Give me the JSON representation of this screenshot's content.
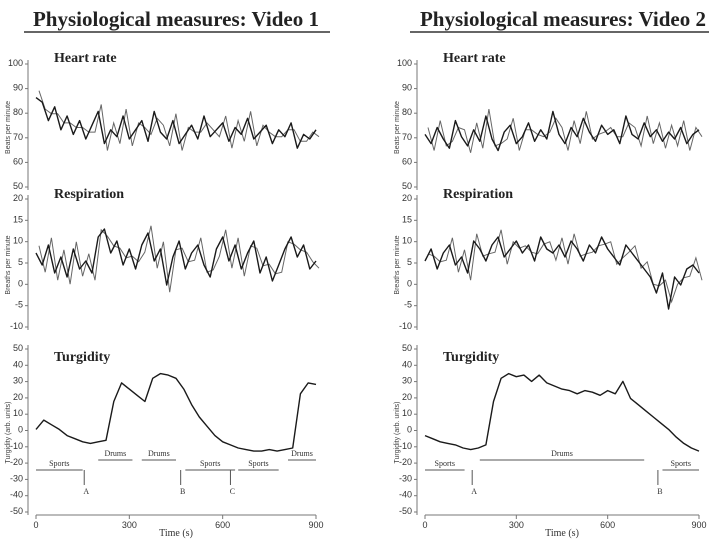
{
  "panels": [
    {
      "title": "Physiological measures: Video 1",
      "xmax": 900,
      "x_ticks": [
        "0",
        "300",
        "600",
        "900"
      ],
      "xlabel": "Time (s)",
      "subplots": [
        {
          "label": "Heart rate",
          "ylabel": "Beats per minute",
          "y_ticks": [
            "100",
            "90",
            "80",
            "70",
            "60",
            "50"
          ]
        },
        {
          "label": "Respiration",
          "ylabel": "Breaths per minute",
          "y_ticks": [
            "20",
            "15",
            "10",
            "5",
            "0",
            "-5",
            "-10"
          ]
        },
        {
          "label": "Turgidity",
          "ylabel": "Turgidity (arb. units)",
          "y_ticks": [
            "50",
            "40",
            "30",
            "20",
            "10",
            "0",
            "-10",
            "-20",
            "-30",
            "-40",
            "-50"
          ]
        }
      ],
      "segments": [
        {
          "label": "Sports",
          "x0": 0,
          "x1": 150,
          "row": "low"
        },
        {
          "label": "A",
          "x0": 150,
          "x1": 160,
          "row": "mark"
        },
        {
          "label": "Drums",
          "x0": 200,
          "x1": 310,
          "row": "high"
        },
        {
          "label": "Drums",
          "x0": 340,
          "x1": 450,
          "row": "high"
        },
        {
          "label": "B",
          "x0": 460,
          "x1": 470,
          "row": "mark"
        },
        {
          "label": "Sports",
          "x0": 480,
          "x1": 640,
          "row": "low"
        },
        {
          "label": "C",
          "x0": 620,
          "x1": 630,
          "row": "mark"
        },
        {
          "label": "Sports",
          "x0": 650,
          "x1": 780,
          "row": "low"
        },
        {
          "label": "Drums",
          "x0": 810,
          "x1": 900,
          "row": "high"
        }
      ]
    },
    {
      "title": "Physiological measures: Video 2",
      "xmax": 900,
      "x_ticks": [
        "0",
        "300",
        "600",
        "900"
      ],
      "xlabel": "Time (s)",
      "subplots": [
        {
          "label": "Heart rate",
          "ylabel": "Beats per minute",
          "y_ticks": [
            "100",
            "90",
            "80",
            "70",
            "60",
            "50"
          ]
        },
        {
          "label": "Respiration",
          "ylabel": "Breaths per minute",
          "y_ticks": [
            "20",
            "15",
            "10",
            "5",
            "0",
            "-5",
            "-10"
          ]
        },
        {
          "label": "Turgidity",
          "ylabel": "Turgidity (arb. units)",
          "y_ticks": [
            "50",
            "40",
            "30",
            "20",
            "10",
            "0",
            "-10",
            "-20",
            "-30",
            "-40",
            "-50"
          ]
        }
      ],
      "segments": [
        {
          "label": "Sports",
          "x0": 0,
          "x1": 130,
          "row": "low"
        },
        {
          "label": "A",
          "x0": 150,
          "x1": 160,
          "row": "mark"
        },
        {
          "label": "Drums",
          "x0": 180,
          "x1": 720,
          "row": "high"
        },
        {
          "label": "B",
          "x0": 760,
          "x1": 770,
          "row": "mark"
        },
        {
          "label": "Sports",
          "x0": 780,
          "x1": 900,
          "row": "low"
        }
      ]
    }
  ],
  "chart_data": [
    {
      "type": "line",
      "title": "Physiological measures: Video 1",
      "xlabel": "Time (s)",
      "xlim": [
        0,
        900
      ],
      "series": [
        {
          "name": "Heart rate",
          "ylim": [
            50,
            100
          ],
          "x": [
            0,
            20,
            40,
            60,
            80,
            100,
            120,
            140,
            160,
            180,
            200,
            220,
            240,
            260,
            280,
            300,
            320,
            340,
            360,
            380,
            400,
            420,
            440,
            460,
            480,
            500,
            520,
            540,
            560,
            580,
            600,
            620,
            640,
            660,
            680,
            700,
            720,
            740,
            760,
            780,
            800,
            820,
            840,
            860,
            880,
            900
          ],
          "y": [
            88,
            86,
            78,
            84,
            74,
            80,
            72,
            78,
            70,
            76,
            82,
            68,
            74,
            71,
            80,
            70,
            74,
            78,
            69,
            82,
            73,
            70,
            78,
            68,
            72,
            76,
            70,
            80,
            71,
            74,
            77,
            69,
            75,
            72,
            79,
            70,
            73,
            76,
            68,
            74,
            71,
            77,
            66,
            72,
            70,
            74
          ]
        },
        {
          "name": "Respiration",
          "ylim": [
            -10,
            20
          ],
          "x": [
            0,
            20,
            40,
            60,
            80,
            100,
            120,
            140,
            160,
            180,
            200,
            220,
            240,
            260,
            280,
            300,
            320,
            340,
            360,
            380,
            400,
            420,
            440,
            460,
            480,
            500,
            520,
            540,
            560,
            580,
            600,
            620,
            640,
            660,
            680,
            700,
            720,
            740,
            760,
            780,
            800,
            820,
            840,
            860,
            880,
            900
          ],
          "y": [
            8,
            5,
            10,
            3,
            7,
            2,
            9,
            4,
            6,
            3,
            12,
            14,
            8,
            11,
            5,
            9,
            4,
            10,
            13,
            6,
            9,
            0,
            7,
            11,
            4,
            8,
            10,
            5,
            2,
            9,
            12,
            6,
            10,
            4,
            8,
            11,
            3,
            7,
            1,
            5,
            9,
            12,
            7,
            10,
            4,
            6
          ]
        },
        {
          "name": "Turgidity",
          "ylim": [
            -50,
            50
          ],
          "x": [
            0,
            25,
            50,
            75,
            100,
            125,
            150,
            175,
            200,
            225,
            250,
            275,
            300,
            325,
            350,
            375,
            400,
            425,
            450,
            475,
            500,
            525,
            550,
            575,
            600,
            625,
            650,
            675,
            700,
            725,
            750,
            775,
            800,
            825,
            850,
            875,
            900
          ],
          "y": [
            2,
            8,
            5,
            2,
            -2,
            -4,
            -6,
            -7,
            -6,
            -5,
            20,
            32,
            28,
            24,
            20,
            35,
            38,
            37,
            35,
            28,
            18,
            10,
            4,
            -2,
            -6,
            -8,
            -10,
            -11,
            -12,
            -12,
            -11,
            -12,
            -11,
            -10,
            25,
            32,
            31
          ]
        }
      ]
    },
    {
      "type": "line",
      "title": "Physiological measures: Video 2",
      "xlabel": "Time (s)",
      "xlim": [
        0,
        900
      ],
      "series": [
        {
          "name": "Heart rate",
          "ylim": [
            50,
            100
          ],
          "x": [
            0,
            20,
            40,
            60,
            80,
            100,
            120,
            140,
            160,
            180,
            200,
            220,
            240,
            260,
            280,
            300,
            320,
            340,
            360,
            380,
            400,
            420,
            440,
            460,
            480,
            500,
            520,
            540,
            560,
            580,
            600,
            620,
            640,
            660,
            680,
            700,
            720,
            740,
            760,
            780,
            800,
            820,
            840,
            860,
            880,
            900
          ],
          "y": [
            72,
            68,
            75,
            70,
            66,
            78,
            71,
            67,
            74,
            69,
            80,
            70,
            65,
            73,
            76,
            68,
            71,
            77,
            69,
            74,
            70,
            82,
            72,
            68,
            75,
            71,
            79,
            73,
            69,
            76,
            72,
            74,
            68,
            80,
            72,
            70,
            77,
            71,
            74,
            69,
            73,
            70,
            75,
            68,
            72,
            74
          ]
        },
        {
          "name": "Respiration",
          "ylim": [
            -10,
            20
          ],
          "x": [
            0,
            20,
            40,
            60,
            80,
            100,
            120,
            140,
            160,
            180,
            200,
            220,
            240,
            260,
            280,
            300,
            320,
            340,
            360,
            380,
            400,
            420,
            440,
            460,
            480,
            500,
            520,
            540,
            560,
            580,
            600,
            620,
            640,
            660,
            680,
            700,
            720,
            740,
            760,
            780,
            800,
            820,
            840,
            860,
            880,
            900
          ],
          "y": [
            6,
            9,
            4,
            8,
            10,
            5,
            7,
            3,
            11,
            9,
            6,
            10,
            12,
            7,
            9,
            11,
            8,
            10,
            6,
            12,
            9,
            8,
            10,
            7,
            11,
            9,
            6,
            10,
            8,
            12,
            9,
            7,
            5,
            10,
            8,
            6,
            4,
            2,
            -2,
            3,
            -6,
            2,
            0,
            4,
            5,
            3
          ]
        },
        {
          "name": "Turgidity",
          "ylim": [
            -50,
            50
          ],
          "x": [
            0,
            25,
            50,
            75,
            100,
            125,
            150,
            175,
            200,
            225,
            250,
            275,
            300,
            325,
            350,
            375,
            400,
            425,
            450,
            475,
            500,
            525,
            550,
            575,
            600,
            625,
            650,
            675,
            700,
            725,
            750,
            775,
            800,
            825,
            850,
            875,
            900
          ],
          "y": [
            -2,
            -4,
            -6,
            -7,
            -8,
            -10,
            -11,
            -10,
            -8,
            20,
            35,
            38,
            36,
            37,
            33,
            37,
            32,
            30,
            28,
            27,
            25,
            27,
            26,
            24,
            27,
            25,
            33,
            22,
            18,
            14,
            10,
            6,
            2,
            -3,
            -7,
            -10,
            -12
          ]
        }
      ]
    }
  ]
}
